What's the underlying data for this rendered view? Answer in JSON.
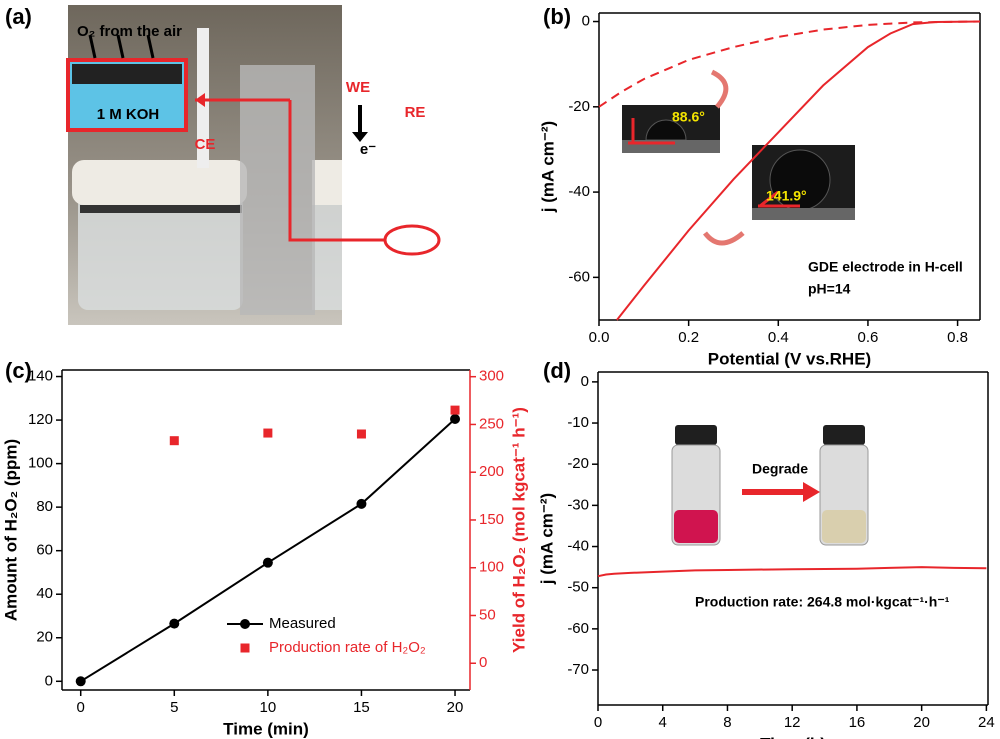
{
  "photo": {
    "panel": "(a)",
    "air": "O₂ from the air",
    "electrolyte": "1 M KOH",
    "ce": "CE",
    "we": "WE",
    "re": "RE",
    "electron": "e⁻"
  },
  "chart_data": [
    {
      "type": "line",
      "panel": "(b)",
      "xlabel": "Potential (V vs.RHE)",
      "ylabel": "j (mA cm⁻²)",
      "xlim": [
        0,
        0.85
      ],
      "xticks": [
        {
          "value": 0,
          "label": "0.0"
        },
        0.2,
        0.4,
        0.6,
        0.8
      ],
      "ylim": [
        -70,
        2
      ],
      "yticks": [
        0,
        -20,
        -40,
        -60
      ],
      "series": [
        {
          "color": "#e8262b",
          "dash": true,
          "x": [
            0,
            0.05,
            0.1,
            0.2,
            0.3,
            0.4,
            0.5,
            0.6,
            0.7,
            0.85
          ],
          "values": [
            -20,
            -16.5,
            -13.5,
            -9,
            -6,
            -3.6,
            -1.9,
            -0.8,
            -0.2,
            0
          ]
        },
        {
          "color": "#e8262b",
          "x": [
            0.04,
            0.1,
            0.2,
            0.3,
            0.4,
            0.5,
            0.6,
            0.65,
            0.7,
            0.75,
            0.85
          ],
          "values": [
            -70,
            -62,
            -49,
            -37,
            -26,
            -15,
            -6,
            -2.8,
            -0.6,
            -0.1,
            0
          ]
        }
      ],
      "annotations": [
        "88.6°",
        "141.9°",
        "GDE electrode in H-cell",
        "pH=14"
      ]
    },
    {
      "type": "line",
      "panel": "(c)",
      "xlabel": "Time (min)",
      "ylabel": "Amount of H₂O₂ (ppm)",
      "y2label": "Yield of H₂O₂ (mol kgcat⁻¹ h⁻¹)",
      "xlim": [
        -1,
        20.8
      ],
      "xticks": [
        0,
        5,
        10,
        15,
        20
      ],
      "ylim": [
        -4,
        143
      ],
      "yticks": [
        0,
        20,
        40,
        60,
        80,
        100,
        120,
        140
      ],
      "y2lim": [
        -28,
        307
      ],
      "y2ticks": [
        0,
        50,
        100,
        150,
        200,
        250,
        300
      ],
      "legend": "lower center",
      "series": [
        {
          "name": "Measured",
          "color": "#000000",
          "marker": "circle",
          "x": [
            0,
            5,
            10,
            15,
            20
          ],
          "values": [
            0,
            26.5,
            54.5,
            81.5,
            120.5
          ]
        },
        {
          "name": "Production rate of H₂O₂",
          "color": "#e8262b",
          "marker": "square",
          "line": false,
          "axis": "y2",
          "x": [
            5,
            10,
            15,
            20
          ],
          "values": [
            233,
            241,
            240,
            265
          ]
        }
      ]
    },
    {
      "type": "line",
      "panel": "(d)",
      "xlabel": "Time (h)",
      "ylabel": "j (mA cm⁻²)",
      "xlim": [
        0,
        24.1
      ],
      "xticks": [
        0,
        4,
        8,
        12,
        16,
        20,
        24
      ],
      "ylim": [
        -78.5,
        2.4
      ],
      "yticks": [
        0,
        -10,
        -20,
        -30,
        -40,
        -50,
        -60,
        -70
      ],
      "series": [
        {
          "color": "#e8262b",
          "x": [
            0,
            0.5,
            1,
            2,
            4,
            6,
            8,
            12,
            16,
            18,
            20,
            22,
            24
          ],
          "values": [
            -47.2,
            -46.8,
            -46.6,
            -46.4,
            -46.1,
            -45.8,
            -45.7,
            -45.5,
            -45.4,
            -45.2,
            -45,
            -45.2,
            -45.3
          ]
        }
      ],
      "annotations": [
        "Degrade",
        "Production rate: 264.8 mol·kgcat⁻¹·h⁻¹"
      ]
    }
  ]
}
